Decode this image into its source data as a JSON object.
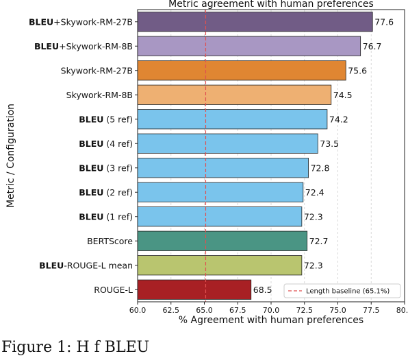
{
  "chart_data": {
    "type": "bar",
    "orientation": "horizontal",
    "title": "Metric agreement with human preferences",
    "xlabel": "% Agreement with human preferences",
    "ylabel": "Metric / Configuration",
    "xlim": [
      60.0,
      80.0
    ],
    "xticks": [
      "60.0",
      "62.5",
      "65.0",
      "67.5",
      "70.0",
      "72.5",
      "75.0",
      "77.5",
      "80.0"
    ],
    "grid": "vertical dashed",
    "legend_position": "lower-right",
    "categories": [
      {
        "bold": "BLEU",
        "rest": "+Skywork-RM-27B",
        "value": 77.6,
        "label": "77.6",
        "color": "#715c86"
      },
      {
        "bold": "BLEU",
        "rest": "+Skywork-RM-8B",
        "value": 76.7,
        "label": "76.7",
        "color": "#a897c3"
      },
      {
        "bold": "",
        "rest": "Skywork-RM-27B",
        "value": 75.6,
        "label": "75.6",
        "color": "#e08632"
      },
      {
        "bold": "",
        "rest": "Skywork-RM-8B",
        "value": 74.5,
        "label": "74.5",
        "color": "#eeb072"
      },
      {
        "bold": "BLEU",
        "rest": " (5 ref)",
        "value": 74.2,
        "label": "74.2",
        "color": "#7ac4ec"
      },
      {
        "bold": "BLEU",
        "rest": " (4 ref)",
        "value": 73.5,
        "label": "73.5",
        "color": "#7ac4ec"
      },
      {
        "bold": "BLEU",
        "rest": " (3 ref)",
        "value": 72.8,
        "label": "72.8",
        "color": "#7ac4ec"
      },
      {
        "bold": "BLEU",
        "rest": " (2 ref)",
        "value": 72.4,
        "label": "72.4",
        "color": "#7ac4ec"
      },
      {
        "bold": "BLEU",
        "rest": " (1 ref)",
        "value": 72.3,
        "label": "72.3",
        "color": "#7ac4ec"
      },
      {
        "bold": "",
        "rest": "BERTScore",
        "value": 72.7,
        "label": "72.7",
        "color": "#4a9584"
      },
      {
        "bold": "BLEU",
        "rest": "-ROUGE-L mean",
        "value": 72.3,
        "label": "72.3",
        "color": "#b9c56f"
      },
      {
        "bold": "",
        "rest": "ROUGE-L",
        "value": 68.5,
        "label": "68.5",
        "color": "#a82024"
      }
    ],
    "baseline": {
      "value": 65.1,
      "label": "Length baseline (65.1%)",
      "color": "#e05050"
    }
  },
  "caption": "Figure 1: H                           f   BLEU                  "
}
